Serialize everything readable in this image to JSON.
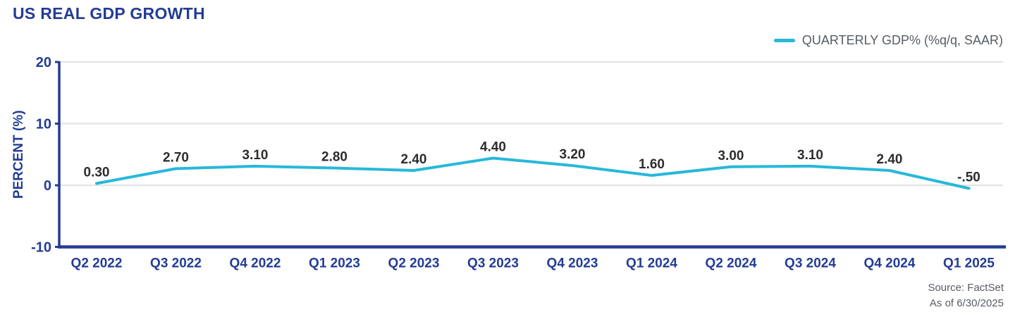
{
  "header": {
    "title": "US REAL GDP GROWTH"
  },
  "legend": {
    "label": "QUARTERLY GDP% (%q/q, SAAR)",
    "swatch_color": "#27b8da"
  },
  "footer": {
    "source": "Source: FactSet",
    "as_of": "As of 6/30/2025"
  },
  "chart_data": {
    "type": "line",
    "title": "US REAL GDP GROWTH",
    "ylabel": "PERCENT (%)",
    "xlabel": "",
    "categories": [
      "Q2 2022",
      "Q3 2022",
      "Q4 2022",
      "Q1 2023",
      "Q2 2023",
      "Q3 2023",
      "Q4 2023",
      "Q1 2024",
      "Q2 2024",
      "Q3 2024",
      "Q4 2024",
      "Q1 2025"
    ],
    "series": [
      {
        "name": "QUARTERLY GDP% (%q/q, SAAR)",
        "values": [
          0.3,
          2.7,
          3.1,
          2.8,
          2.4,
          4.4,
          3.2,
          1.6,
          3.0,
          3.1,
          2.4,
          -0.5
        ]
      }
    ],
    "data_labels": [
      "0.30",
      "2.70",
      "3.10",
      "2.80",
      "2.40",
      "4.40",
      "3.20",
      "1.60",
      "3.00",
      "3.10",
      "2.40",
      "-.50"
    ],
    "y_ticks": [
      20,
      10,
      0,
      -10
    ],
    "ylim": [
      -10,
      20
    ],
    "grid": true,
    "legend_position": "top-right",
    "line_color": "#27b8da",
    "axis_color": "#233c94",
    "grid_color": "#e4e2df",
    "data_label_color": "#2d2d2d",
    "tick_label_color": "#233c94"
  }
}
